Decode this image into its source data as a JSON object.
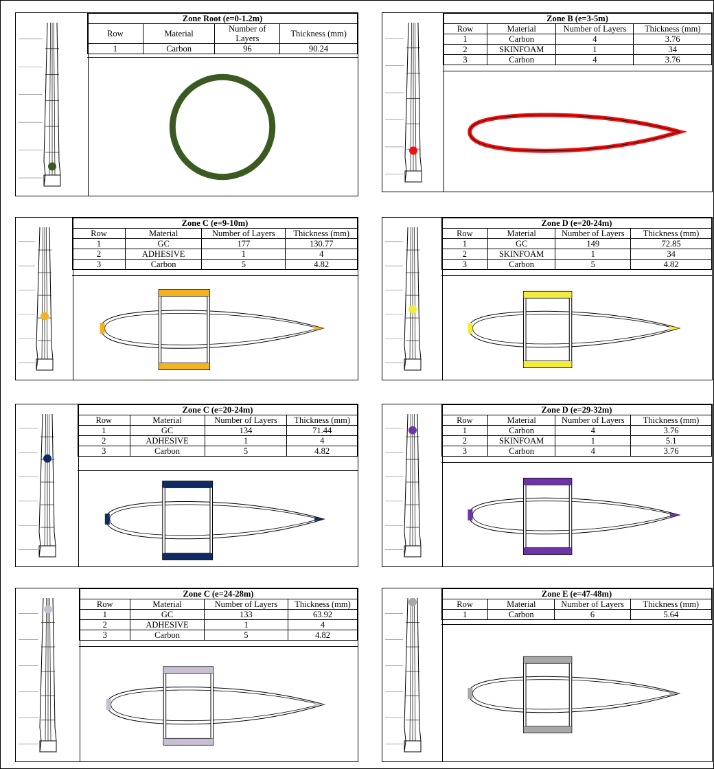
{
  "headers": {
    "row": "Row",
    "material": "Material",
    "layers": "Number of Layers",
    "thickness": "Thickness (mm)"
  },
  "colors": {
    "root": "#3a5a22",
    "b": "#ee1111",
    "c1": "#f5b220",
    "d1": "#f4ec3a",
    "c2": "#102a63",
    "d2": "#6d34a8",
    "c3": "#c9bfd3",
    "e": "#a8a8a8",
    "outline": "#000000"
  },
  "panels": [
    {
      "title": "Zone Root (e=0-1.2m)",
      "color": "root",
      "dot": 0.9,
      "rows": [
        {
          "row": "1",
          "material": "Carbon",
          "layers": "96",
          "thickness": "90.24"
        }
      ]
    },
    {
      "title": "Zone B (e=3-5m)",
      "color": "b",
      "dot": 0.82,
      "rows": [
        {
          "row": "1",
          "material": "Carbon",
          "layers": "4",
          "thickness": "3.76"
        },
        {
          "row": "2",
          "material": "SKINFOAM",
          "layers": "1",
          "thickness": "34"
        },
        {
          "row": "3",
          "material": "Carbon",
          "layers": "4",
          "thickness": "3.76"
        }
      ]
    },
    {
      "title": "Zone C (e=9-10m)",
      "color": "c1",
      "dot": 0.63,
      "rows": [
        {
          "row": "1",
          "material": "GC",
          "layers": "177",
          "thickness": "130.77"
        },
        {
          "row": "2",
          "material": "ADHESIVE",
          "layers": "1",
          "thickness": "4"
        },
        {
          "row": "3",
          "material": "Carbon",
          "layers": "5",
          "thickness": "4.82"
        }
      ]
    },
    {
      "title": "Zone D (e=20-24m)",
      "color": "d1",
      "dot": 0.58,
      "rows": [
        {
          "row": "1",
          "material": "GC",
          "layers": "149",
          "thickness": "72.85"
        },
        {
          "row": "2",
          "material": "SKINFOAM",
          "layers": "1",
          "thickness": "34"
        },
        {
          "row": "3",
          "material": "Carbon",
          "layers": "5",
          "thickness": "4.82"
        }
      ]
    },
    {
      "title": "Zone C (e=20-24m)",
      "color": "c2",
      "dot": 0.3,
      "rows": [
        {
          "row": "1",
          "material": "GC",
          "layers": "134",
          "thickness": "71.44"
        },
        {
          "row": "2",
          "material": "ADHESIVE",
          "layers": "1",
          "thickness": "4"
        },
        {
          "row": "3",
          "material": "Carbon",
          "layers": "5",
          "thickness": "4.82"
        }
      ]
    },
    {
      "title": "Zone D (e=29-32m)",
      "color": "d2",
      "dot": 0.09,
      "rows": [
        {
          "row": "1",
          "material": "Carbon",
          "layers": "4",
          "thickness": "3.76"
        },
        {
          "row": "2",
          "material": "SKINFOAM",
          "layers": "1",
          "thickness": "5.1"
        },
        {
          "row": "3",
          "material": "Carbon",
          "layers": "4",
          "thickness": "3.76"
        }
      ]
    },
    {
      "title": "Zone C (e=24-28m)",
      "color": "c3",
      "dot": 0.05,
      "rows": [
        {
          "row": "1",
          "material": "GC",
          "layers": "133",
          "thickness": "63.92"
        },
        {
          "row": "2",
          "material": "ADHESIVE",
          "layers": "1",
          "thickness": "4"
        },
        {
          "row": "3",
          "material": "Carbon",
          "layers": "5",
          "thickness": "4.82"
        }
      ]
    },
    {
      "title": "Zone E (e=47-48m)",
      "color": "e",
      "dot": 0.0,
      "rows": [
        {
          "row": "1",
          "material": "Carbon",
          "layers": "6",
          "thickness": "5.64"
        }
      ]
    }
  ]
}
